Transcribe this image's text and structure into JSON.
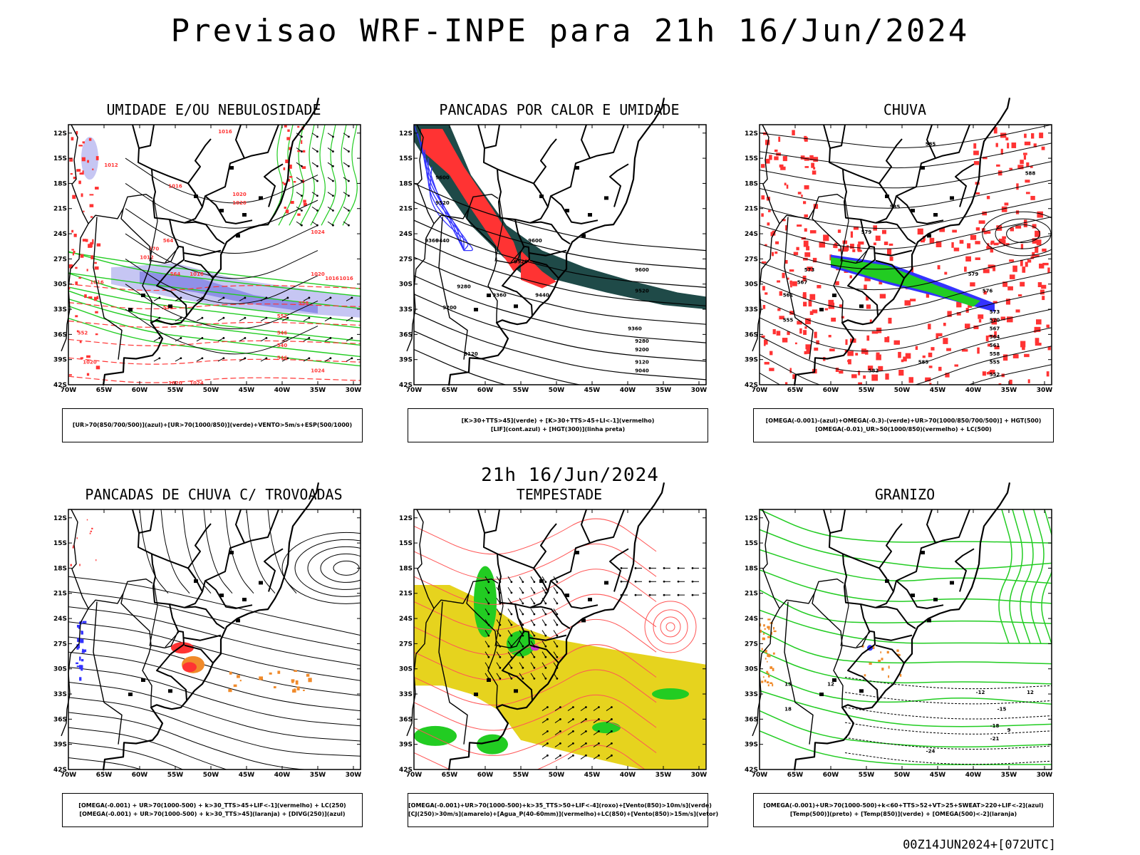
{
  "title": "Previsao WRF-INPE  para 21h 16/Jun/2024",
  "mid_title": "21h 16/Jun/2024",
  "footer": "00Z14JUN2024+[072UTC]",
  "lat_ticks": [
    "12S",
    "15S",
    "18S",
    "21S",
    "24S",
    "27S",
    "30S",
    "33S",
    "36S",
    "39S",
    "42S"
  ],
  "lon_ticks": [
    "70W",
    "65W",
    "60W",
    "55W",
    "50W",
    "45W",
    "40W",
    "35W",
    "30W"
  ],
  "colors": {
    "blue": "#3333ff",
    "green": "#22cc22",
    "red": "#ff3333",
    "dark_teal": "#1f4a48",
    "yellow": "#e6d31e",
    "orange": "#f08a2a",
    "lavender": "#b8b8f0",
    "purple": "#cc33cc"
  },
  "panels": [
    {
      "title": "UMIDADE E/OU NEBULOSIDADE",
      "legend": [
        "[UR>70(850/700/500)](azul)+[UR>70(1000/850)](verde)+VENTO>5m/s+ESP(500/1000)"
      ],
      "contour_labels": [
        "1016",
        "1012",
        "1016",
        "1020",
        "1020",
        "1024",
        "1012",
        "1016",
        "1016",
        "1020",
        "1024",
        "1024",
        "1020",
        "1016",
        "1016",
        "1020",
        "570",
        "564",
        "558",
        "552",
        "546",
        "540",
        "546",
        "552",
        "558",
        "564"
      ]
    },
    {
      "title": "PANCADAS POR CALOR E UMIDADE",
      "legend": [
        "[K>30+TTS>45](verde) + [K>30+TTS>45+LI<-1](vermelho)",
        "[LIF](cont.azul) + [HGT(300)](linha preta)"
      ],
      "contour_labels": [
        "9600",
        "9520",
        "9360",
        "9440",
        "9600",
        "9520",
        "9280",
        "9200",
        "9360",
        "9440",
        "9600",
        "9520",
        "9360",
        "9280",
        "9200",
        "9120",
        "9040",
        "9120"
      ]
    },
    {
      "title": "CHUVA",
      "legend": [
        "[OMEGA(-0.001)-(azul)+OMEGA(-0.3)-(verde)+UR>70(1000/850/700/500)] + HGT(500)",
        "[OMEGA(-0.01)_UR>50(1000/850)(vermelho) + LC(500)"
      ],
      "contour_labels": [
        "585",
        "588",
        "585",
        "579",
        "573",
        "567",
        "561",
        "555",
        "585",
        "582",
        "579",
        "576",
        "573",
        "570",
        "567",
        "564",
        "561",
        "558",
        "555",
        "552"
      ]
    },
    {
      "title": "PANCADAS DE CHUVA C/ TROVOADAS",
      "legend": [
        "[OMEGA(-0.001) + UR>70(1000-500) + k>30_TTS>45+LIF<-1](vermelho) + LC(250)",
        "[OMEGA(-0.001) + UR>70(1000-500) + k>30_TTS>45](laranja) + [DIVG(250)](azul)"
      ],
      "contour_labels": []
    },
    {
      "title": "TEMPESTADE",
      "legend": [
        "[OMEGA(-0.001)+UR>70(1000-500)+k>35_TTS>50+LIF<-4](roxo)+[Vento(850)>10m/s](verde)",
        "[CJ(250)>30m/s](amarelo)+[Agua_P(40-60mm)](vermelho)+LC(850)+[Vento(850)>15m/s](vetor)"
      ],
      "contour_labels": []
    },
    {
      "title": "GRANIZO",
      "legend": [
        "[OMEGA(-0.001)+UR>70(1000-500)+k<60+TTS>52+VT>25+SWEAT>220+LIF<-2](azul)",
        "[Temp(500)](preto) + [Temp(850)](verde) + [OMEGA(500)<-2](laranja)"
      ],
      "contour_labels": [
        "-12",
        "-15",
        "-18",
        "-21",
        "-24",
        "12",
        "9",
        "12",
        "15",
        "18"
      ]
    }
  ]
}
